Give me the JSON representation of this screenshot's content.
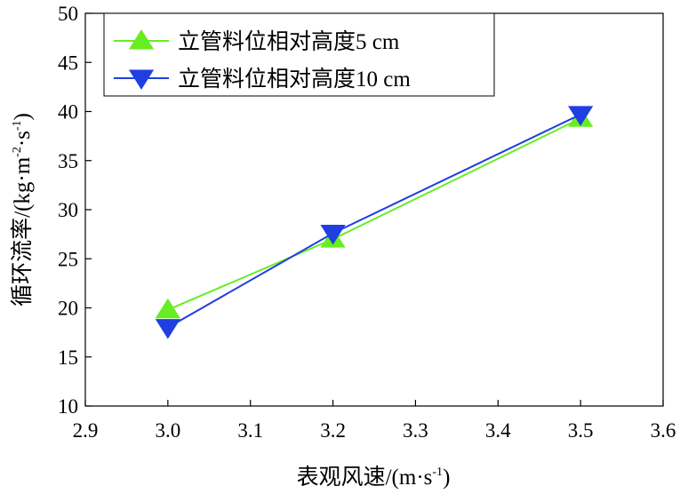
{
  "chart_data": {
    "type": "line",
    "xlabel": "表观风速/(m·s",
    "xlabel_sup": "-1",
    "xlabel_end": ")",
    "ylabel": "循环流率/(kg·m",
    "ylabel_sup1": "-2",
    "ylabel_mid": "·s",
    "ylabel_sup2": "-1",
    "ylabel_end": ")",
    "xlim": [
      2.9,
      3.6
    ],
    "ylim": [
      10,
      50
    ],
    "xticks": [
      "2.9",
      "3.0",
      "3.1",
      "3.2",
      "3.3",
      "3.4",
      "3.5",
      "3.6"
    ],
    "yticks": [
      "10",
      "15",
      "20",
      "25",
      "30",
      "35",
      "40",
      "45",
      "50"
    ],
    "grid": false,
    "legend_position": "top-left",
    "series": [
      {
        "name": "立管料位相对高度5 cm",
        "color": "#66ee22",
        "marker": "triangle-up",
        "x": [
          3.0,
          3.2,
          3.5
        ],
        "y": [
          19.8,
          27.0,
          39.3
        ]
      },
      {
        "name": "立管料位相对高度10 cm",
        "color": "#1f3fe0",
        "marker": "triangle-down",
        "x": [
          3.0,
          3.2,
          3.5
        ],
        "y": [
          18.0,
          27.6,
          39.7
        ]
      }
    ]
  }
}
